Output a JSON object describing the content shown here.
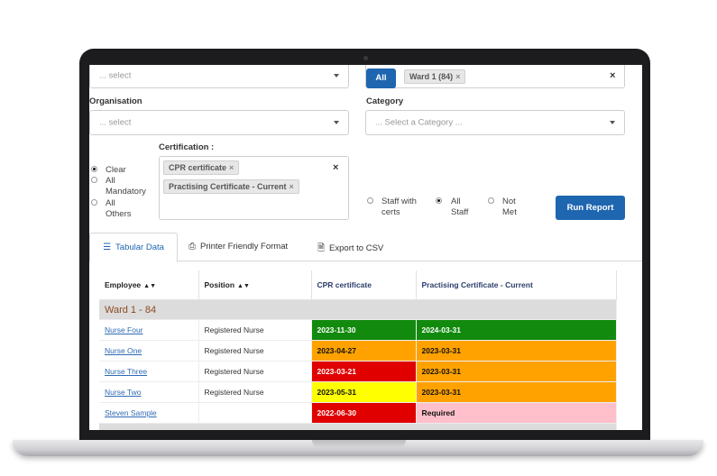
{
  "filters": {
    "top_select": {
      "placeholder": "... select"
    },
    "all_button": "All",
    "ward_tag": "Ward 1 (84)",
    "organisation": {
      "label": "Organisation",
      "placeholder": "... select"
    },
    "category": {
      "label": "Category",
      "placeholder": "... Select a Category ..."
    },
    "certification": {
      "label": "Certification :",
      "tags": [
        "CPR certificate",
        "Practising Certificate - Current"
      ]
    },
    "cert_radios": [
      {
        "label": "Clear",
        "checked": true
      },
      {
        "label": "All Mandatory",
        "checked": false
      },
      {
        "label": "All Others",
        "checked": false
      }
    ],
    "staff_radios": [
      {
        "label": "Staff with certs",
        "checked": false
      },
      {
        "label": "All Staff",
        "checked": true
      },
      {
        "label": "Not Met",
        "checked": false
      }
    ],
    "run_button": "Run Report",
    "clear_glyph": "×"
  },
  "tabs": [
    {
      "label": "Tabular Data",
      "icon": "list-icon",
      "active": true
    },
    {
      "label": "Printer Friendly Format",
      "icon": "printer-icon",
      "active": false
    },
    {
      "label": "Export to CSV",
      "icon": "file-export-icon",
      "active": false
    }
  ],
  "table": {
    "headers": [
      "Employee",
      "Position",
      "CPR certificate",
      "Practising Certificate - Current"
    ],
    "group_label": "Ward 1 - 84",
    "rows": [
      {
        "employee": "Nurse Four",
        "position": "Registered Nurse",
        "cpr": "2023-11-30",
        "cpr_status": "green",
        "prac": "2024-03-31",
        "prac_status": "green"
      },
      {
        "employee": "Nurse One",
        "position": "Registered Nurse",
        "cpr": "2023-04-27",
        "cpr_status": "orange",
        "prac": "2023-03-31",
        "prac_status": "orange"
      },
      {
        "employee": "Nurse Three",
        "position": "Registered Nurse",
        "cpr": "2023-03-21",
        "cpr_status": "red",
        "prac": "2023-03-31",
        "prac_status": "orange"
      },
      {
        "employee": "Nurse Two",
        "position": "Registered Nurse",
        "cpr": "2023-05-31",
        "cpr_status": "yellow",
        "prac": "2023-03-31",
        "prac_status": "orange"
      },
      {
        "employee": "Steven Sample",
        "position": "",
        "cpr": "2022-06-30",
        "cpr_status": "red",
        "prac": "Required",
        "prac_status": "pink"
      }
    ]
  },
  "colors": {
    "green": "#128a0e",
    "orange": "#ffa200",
    "red": "#e00000",
    "yellow": "#ffff00",
    "pink": "#ffc0cb",
    "accent": "#1f66b0"
  }
}
